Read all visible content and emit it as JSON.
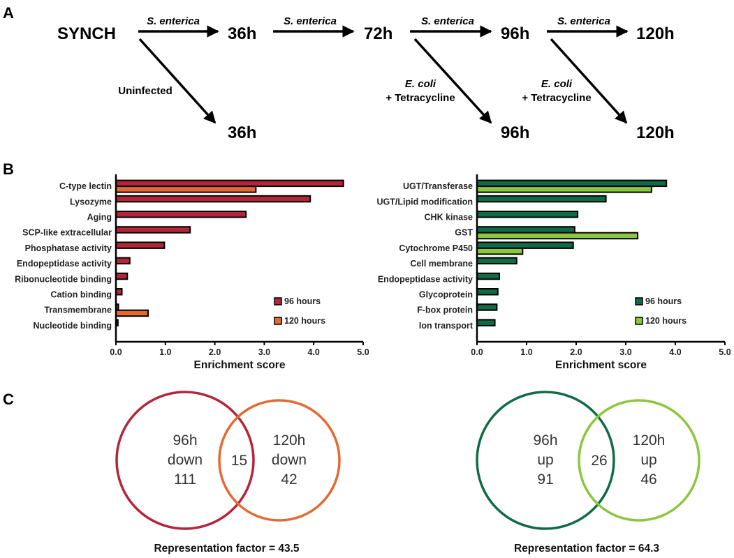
{
  "panel_a": {
    "label": "A",
    "nodes": {
      "synch": "SYNCH",
      "t36": "36h",
      "t72": "72h",
      "t96": "96h",
      "t120": "120h",
      "t36b": "36h",
      "t96b": "96h",
      "t120b": "120h"
    },
    "edge_labels": {
      "senterica": "S. enterica",
      "uninfected": "Uninfected",
      "ecoli": "E. coli",
      "tetracycline": "+ Tetracycline"
    }
  },
  "panel_b": {
    "label": "B"
  },
  "panel_c": {
    "label": "C",
    "venns": [
      {
        "left": [
          "96h",
          "down",
          "111"
        ],
        "overlap": "15",
        "right": [
          "120h",
          "down",
          "42"
        ],
        "caption": "Representation factor = 43.5",
        "colors": {
          "left": "#b3263a",
          "right": "#e46a34"
        }
      },
      {
        "left": [
          "96h",
          "up",
          "91"
        ],
        "overlap": "26",
        "right": [
          "120h",
          "up",
          "46"
        ],
        "caption": "Representation factor = 64.3",
        "colors": {
          "left": "#0f6b45",
          "right": "#8cc63f"
        }
      }
    ]
  },
  "chart_data": [
    {
      "type": "bar",
      "orientation": "horizontal",
      "categories": [
        "C-type lectin",
        "Lysozyme",
        "Aging",
        "SCP-like extracellular",
        "Phosphatase activity",
        "Endopeptidase activity",
        "Ribonucleotide binding",
        "Cation binding",
        "Transmembrane",
        "Nucleotide binding"
      ],
      "series": [
        {
          "name": "96 hours",
          "color": "#b3263a",
          "values": [
            4.6,
            3.93,
            2.63,
            1.5,
            0.98,
            0.28,
            0.23,
            0.12,
            0.05,
            0.04
          ]
        },
        {
          "name": "120 hours",
          "color": "#e46a34",
          "values": [
            2.83,
            null,
            null,
            null,
            null,
            null,
            null,
            null,
            0.65,
            null
          ]
        }
      ],
      "xlabel": "Enrichment score",
      "ticks": [
        "0.0",
        "1.0",
        "2.0",
        "3.0",
        "4.0",
        "5.0"
      ],
      "xlim": [
        0,
        5
      ],
      "legend": "right"
    },
    {
      "type": "bar",
      "orientation": "horizontal",
      "categories": [
        "UGT/Transferase",
        "UGT/Lipid modification",
        "CHK kinase",
        "GST",
        "Cytochrome P450",
        "Cell membrane",
        "Endopeptidase activity",
        "Glycoprotein",
        "F-box protein",
        "Ion transport"
      ],
      "series": [
        {
          "name": "96 hours",
          "color": "#0f6b45",
          "values": [
            3.82,
            2.6,
            2.03,
            1.97,
            1.94,
            0.8,
            0.45,
            0.42,
            0.4,
            0.36
          ]
        },
        {
          "name": "120 hours",
          "color": "#8cc63f",
          "values": [
            3.52,
            null,
            null,
            3.24,
            0.92,
            null,
            null,
            null,
            null,
            null
          ]
        }
      ],
      "xlabel": "Enrichment score",
      "ticks": [
        "0.0",
        "1.0",
        "2.0",
        "3.0",
        "4.0",
        "5.0"
      ],
      "xlim": [
        0,
        5
      ],
      "legend": "right"
    }
  ]
}
